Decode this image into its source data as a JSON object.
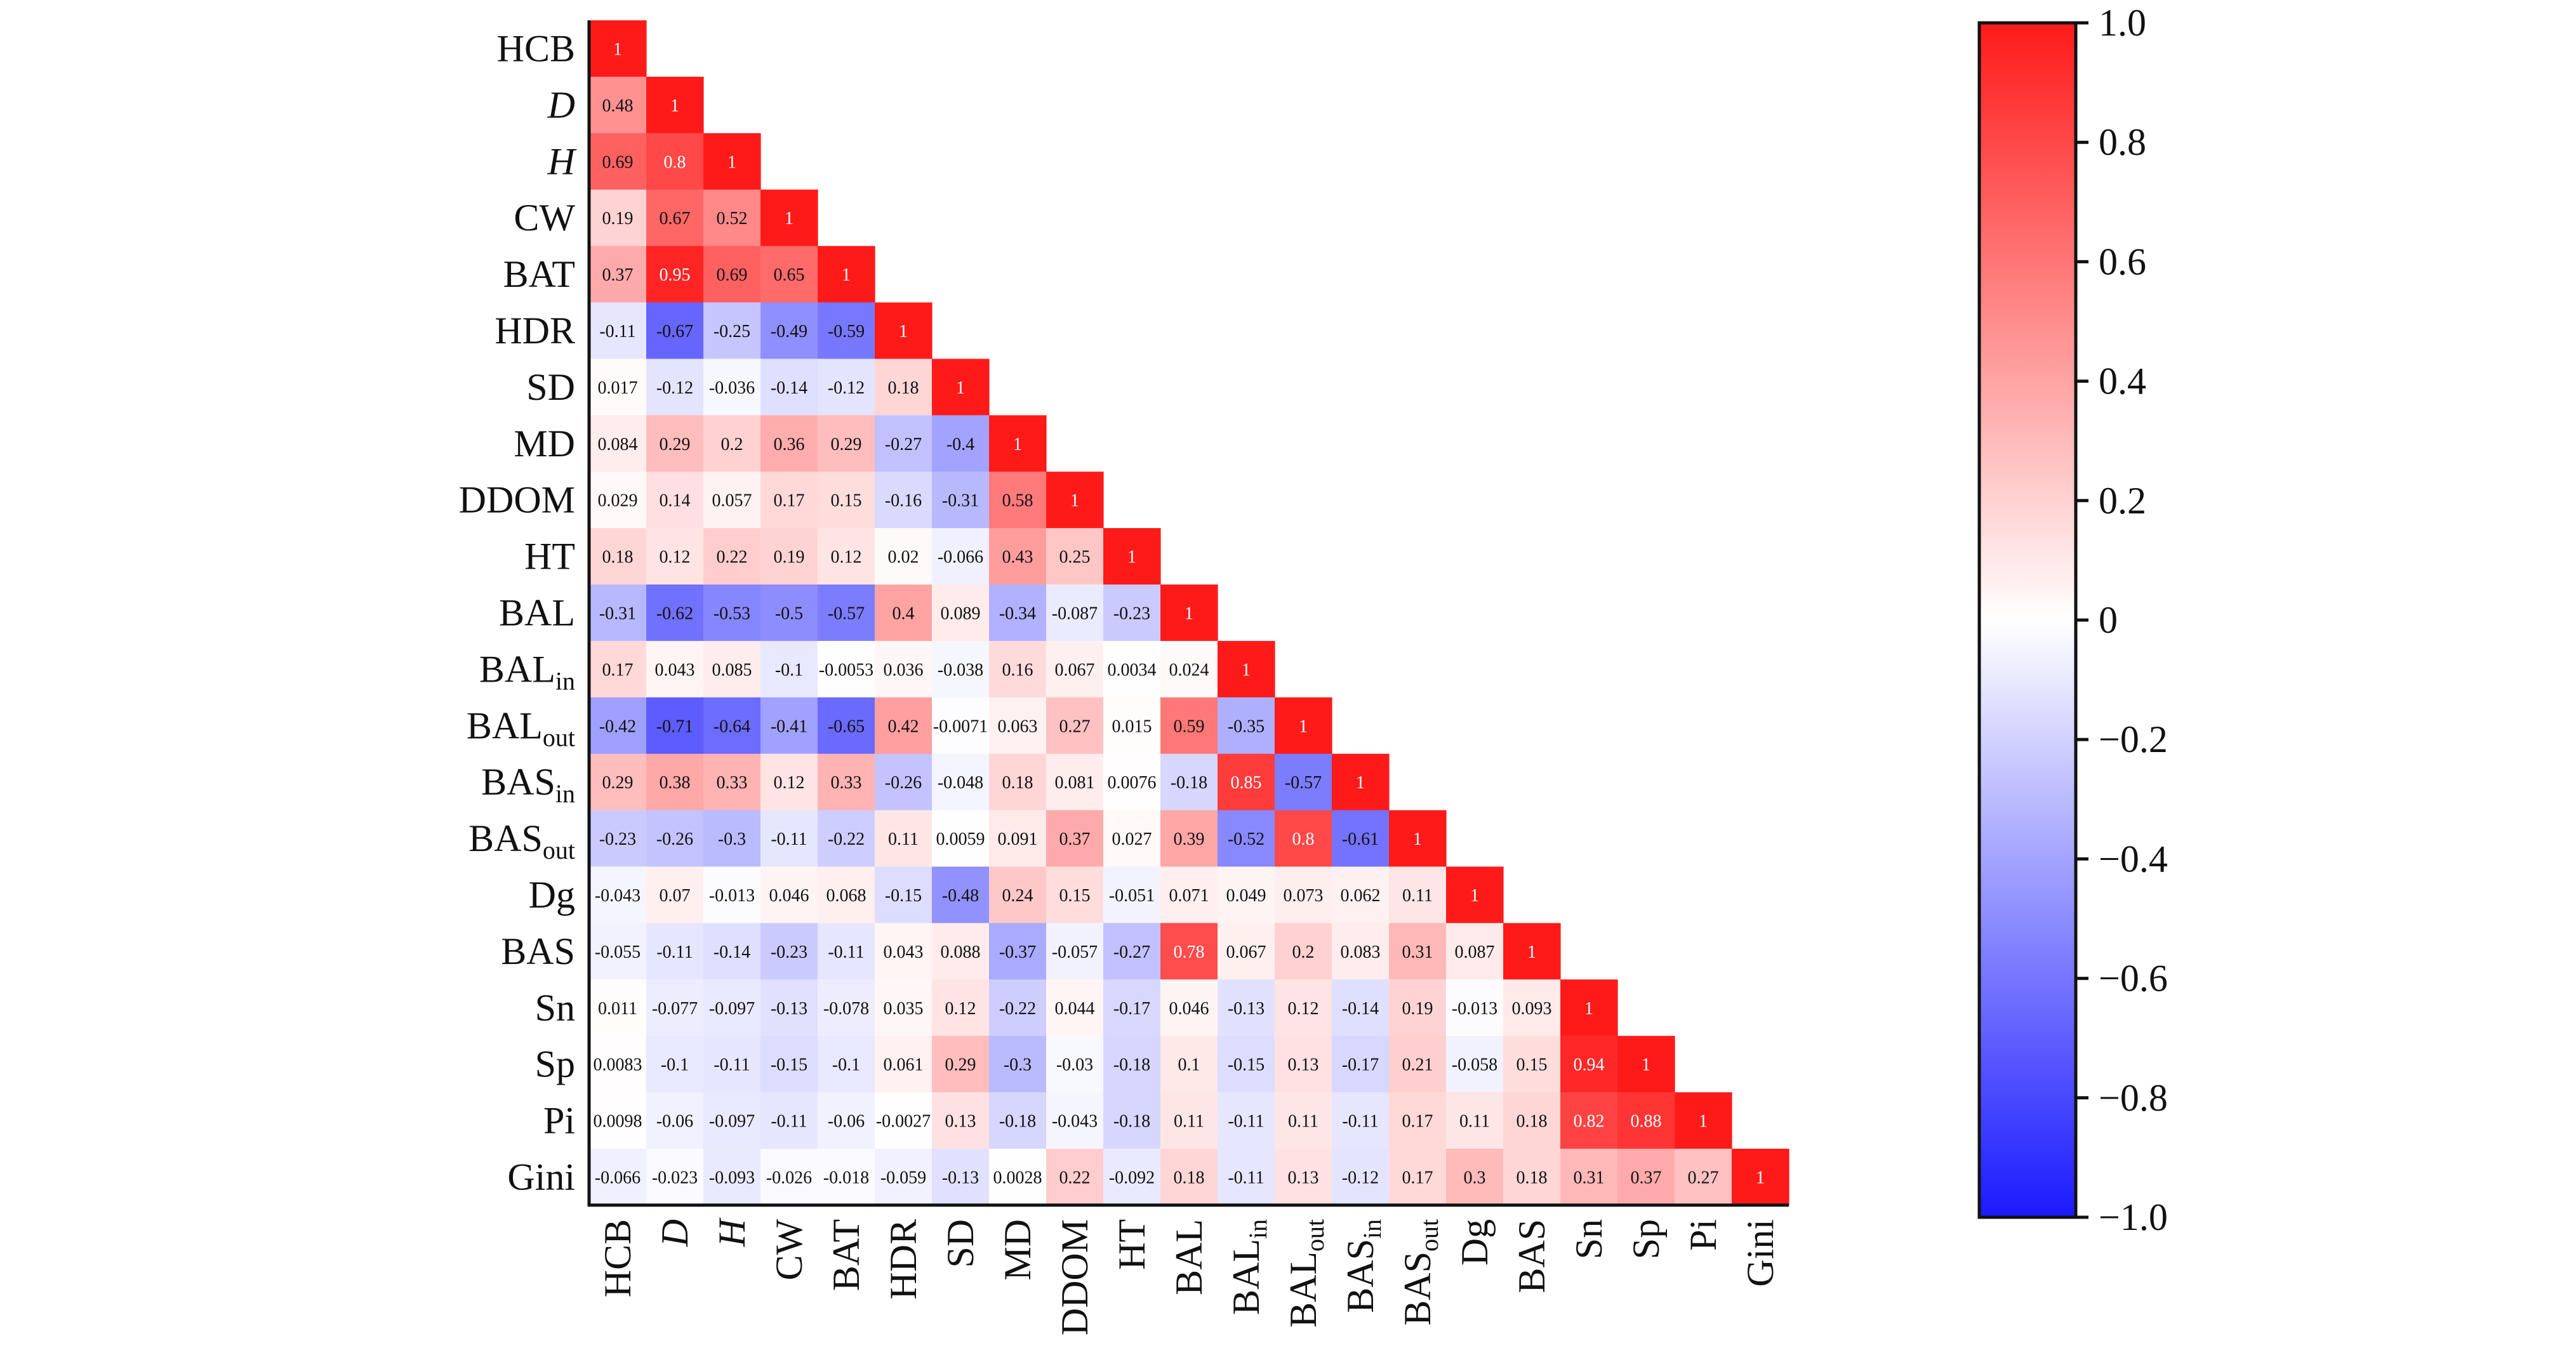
{
  "chart_data": {
    "type": "heatmap",
    "triangle": "lower",
    "labels": [
      {
        "text": "HCB",
        "sub": "",
        "italic": false
      },
      {
        "text": "D",
        "sub": "",
        "italic": true
      },
      {
        "text": "H",
        "sub": "",
        "italic": true
      },
      {
        "text": "CW",
        "sub": "",
        "italic": false
      },
      {
        "text": "BAT",
        "sub": "",
        "italic": false
      },
      {
        "text": "HDR",
        "sub": "",
        "italic": false
      },
      {
        "text": "SD",
        "sub": "",
        "italic": false
      },
      {
        "text": "MD",
        "sub": "",
        "italic": false
      },
      {
        "text": "DDOM",
        "sub": "",
        "italic": false
      },
      {
        "text": "HT",
        "sub": "",
        "italic": false
      },
      {
        "text": "BAL",
        "sub": "",
        "italic": false
      },
      {
        "text": "BAL",
        "sub": "in",
        "italic": false
      },
      {
        "text": "BAL",
        "sub": "out",
        "italic": false
      },
      {
        "text": "BAS",
        "sub": "in",
        "italic": false
      },
      {
        "text": "BAS",
        "sub": "out",
        "italic": false
      },
      {
        "text": "Dg",
        "sub": "",
        "italic": false
      },
      {
        "text": "BAS",
        "sub": "",
        "italic": false
      },
      {
        "text": "Sn",
        "sub": "",
        "italic": false
      },
      {
        "text": "Sp",
        "sub": "",
        "italic": false
      },
      {
        "text": "Pi",
        "sub": "",
        "italic": false
      },
      {
        "text": "Gini",
        "sub": "",
        "italic": false
      }
    ],
    "matrix": [
      [
        1
      ],
      [
        0.48,
        1
      ],
      [
        0.69,
        0.8,
        1
      ],
      [
        0.19,
        0.67,
        0.52,
        1
      ],
      [
        0.37,
        0.95,
        0.69,
        0.65,
        1
      ],
      [
        -0.11,
        -0.67,
        -0.25,
        -0.49,
        -0.59,
        1
      ],
      [
        0.017,
        -0.12,
        -0.036,
        -0.14,
        -0.12,
        0.18,
        1
      ],
      [
        0.084,
        0.29,
        0.2,
        0.36,
        0.29,
        -0.27,
        -0.4,
        1
      ],
      [
        0.029,
        0.14,
        0.057,
        0.17,
        0.15,
        -0.16,
        -0.31,
        0.58,
        1
      ],
      [
        0.18,
        0.12,
        0.22,
        0.19,
        0.12,
        0.02,
        -0.066,
        0.43,
        0.25,
        1
      ],
      [
        -0.31,
        -0.62,
        -0.53,
        -0.5,
        -0.57,
        0.4,
        0.089,
        -0.34,
        -0.087,
        -0.23,
        1
      ],
      [
        0.17,
        0.043,
        0.085,
        -0.1,
        -0.0053,
        0.036,
        -0.038,
        0.16,
        0.067,
        0.0034,
        0.024,
        1
      ],
      [
        -0.42,
        -0.71,
        -0.64,
        -0.41,
        -0.65,
        0.42,
        -0.0071,
        0.063,
        0.27,
        0.015,
        0.59,
        -0.35,
        1
      ],
      [
        0.29,
        0.38,
        0.33,
        0.12,
        0.33,
        -0.26,
        -0.048,
        0.18,
        0.081,
        0.0076,
        -0.18,
        0.85,
        -0.57,
        1
      ],
      [
        -0.23,
        -0.26,
        -0.3,
        -0.11,
        -0.22,
        0.11,
        0.0059,
        0.091,
        0.37,
        0.027,
        0.39,
        -0.52,
        0.8,
        -0.61,
        1
      ],
      [
        -0.043,
        0.07,
        -0.013,
        0.046,
        0.068,
        -0.15,
        -0.48,
        0.24,
        0.15,
        -0.051,
        0.071,
        0.049,
        0.073,
        0.062,
        0.11,
        1
      ],
      [
        -0.055,
        -0.11,
        -0.14,
        -0.23,
        -0.11,
        0.043,
        0.088,
        -0.37,
        -0.057,
        -0.27,
        0.78,
        0.067,
        0.2,
        0.083,
        0.31,
        0.087,
        1
      ],
      [
        0.011,
        -0.077,
        -0.097,
        -0.13,
        -0.078,
        0.035,
        0.12,
        -0.22,
        0.044,
        -0.17,
        0.046,
        -0.13,
        0.12,
        -0.14,
        0.19,
        -0.013,
        0.093,
        1
      ],
      [
        0.0083,
        -0.1,
        -0.11,
        -0.15,
        -0.1,
        0.061,
        0.29,
        -0.3,
        -0.03,
        -0.18,
        0.1,
        -0.15,
        0.13,
        -0.17,
        0.21,
        -0.058,
        0.15,
        0.94,
        1
      ],
      [
        0.0098,
        -0.06,
        -0.097,
        -0.11,
        -0.06,
        -0.0027,
        0.13,
        -0.18,
        -0.043,
        -0.18,
        0.11,
        -0.11,
        0.11,
        -0.11,
        0.17,
        0.11,
        0.18,
        0.82,
        0.88,
        1
      ],
      [
        -0.066,
        -0.023,
        -0.093,
        -0.026,
        -0.018,
        -0.059,
        -0.13,
        0.0028,
        0.22,
        -0.092,
        0.18,
        -0.11,
        0.13,
        -0.12,
        0.17,
        0.3,
        0.18,
        0.31,
        0.37,
        0.27,
        1
      ]
    ],
    "colorbar": {
      "range": [
        -1.0,
        1.0
      ],
      "ticks": [
        "1.0",
        "0.8",
        "0.6",
        "0.4",
        "0.2",
        "0",
        "−0.2",
        "−0.4",
        "−0.6",
        "−0.8",
        "−1.0"
      ],
      "colors": {
        "negative": "#1a1aff",
        "zero": "#ffffff",
        "positive": "#ff1a1a"
      }
    },
    "title": "",
    "xlabel": "",
    "ylabel": ""
  }
}
